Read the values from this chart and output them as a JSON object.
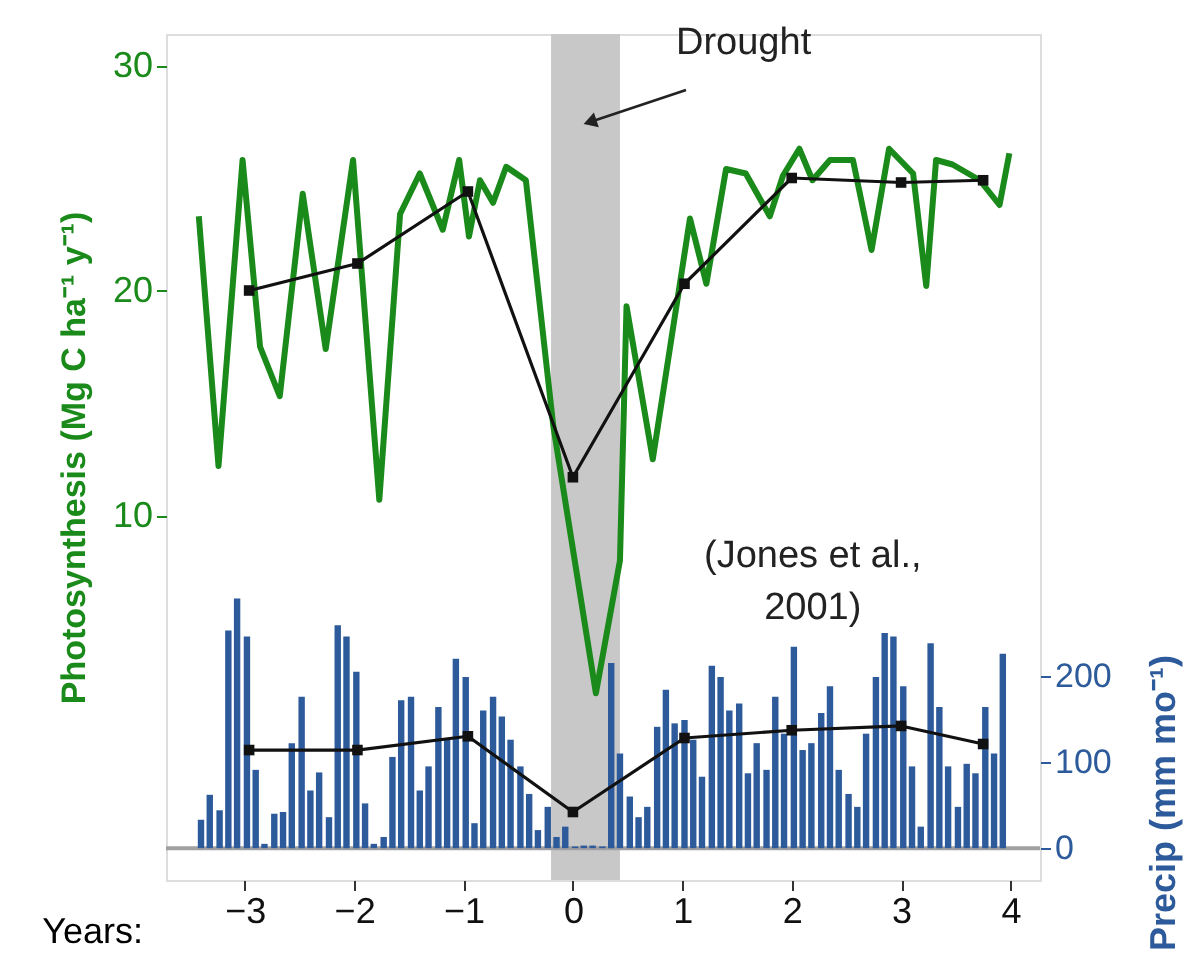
{
  "chart_data": {
    "type": "line",
    "xlabel": "Years:",
    "ylabel": "Photosynthesis (Mg C ha⁻¹ y⁻¹)",
    "y2label": "Precip (mm mo⁻¹)",
    "xlim": [
      -3.72,
      4.27
    ],
    "xticks": [
      -3,
      -2,
      -1,
      0,
      1,
      2,
      3,
      4
    ],
    "ylim": [
      -6.2,
      31.4
    ],
    "yticks": [
      10,
      20,
      30
    ],
    "y2lim": [
      -37,
      946
    ],
    "y2ticks": [
      0,
      100,
      200
    ],
    "grid": false,
    "bands": [
      {
        "axis": "x",
        "from": -0.2,
        "to": 0.43,
        "color": "#c8c8c8"
      }
    ],
    "ref_lines": [
      {
        "axis": "y2",
        "value": 0,
        "color": "#a0a0a0"
      }
    ],
    "annotations": [
      "Drought",
      "(Jones et al.,\n2001)"
    ],
    "series": [
      {
        "type": "bar",
        "axis": "y2",
        "color": "#2d5a9a",
        "x": [
          -3.4,
          -3.32,
          -3.23,
          -3.15,
          -3.07,
          -2.98,
          -2.9,
          -2.82,
          -2.73,
          -2.65,
          -2.57,
          -2.48,
          -2.4,
          -2.32,
          -2.23,
          -2.15,
          -2.07,
          -1.98,
          -1.9,
          -1.82,
          -1.73,
          -1.65,
          -1.57,
          -1.48,
          -1.4,
          -1.32,
          -1.23,
          -1.15,
          -1.07,
          -0.98,
          -0.9,
          -0.82,
          -0.73,
          -0.65,
          -0.57,
          -0.48,
          -0.4,
          -0.32,
          -0.23,
          -0.15,
          -0.07,
          0.02,
          0.1,
          0.18,
          0.27,
          0.35,
          0.43,
          0.52,
          0.6,
          0.68,
          0.77,
          0.85,
          0.93,
          1.02,
          1.1,
          1.18,
          1.27,
          1.35,
          1.43,
          1.52,
          1.6,
          1.68,
          1.77,
          1.85,
          1.93,
          2.02,
          2.1,
          2.18,
          2.27,
          2.35,
          2.43,
          2.52,
          2.6,
          2.68,
          2.77,
          2.85,
          2.93,
          3.02,
          3.1,
          3.18,
          3.27,
          3.35,
          3.43,
          3.52,
          3.6,
          3.68,
          3.77,
          3.85,
          3.93
        ],
        "values": [
          33,
          62,
          44,
          253,
          290,
          246,
          91,
          5,
          40,
          42,
          122,
          176,
          67,
          88,
          36,
          259,
          246,
          205,
          52,
          5,
          13,
          106,
          172,
          176,
          67,
          95,
          164,
          126,
          220,
          199,
          29,
          160,
          176,
          153,
          126,
          95,
          63,
          21,
          48,
          13,
          25,
          2,
          3,
          3,
          2,
          215,
          110,
          60,
          36,
          48,
          141,
          184,
          145,
          149,
          126,
          83,
          212,
          199,
          160,
          168,
          87,
          122,
          91,
          176,
          133,
          234,
          114,
          122,
          157,
          188,
          91,
          63,
          48,
          133,
          199,
          250,
          246,
          188,
          95,
          25,
          238,
          164,
          95,
          48,
          98,
          87,
          164,
          110,
          226
        ]
      },
      {
        "axis": "y",
        "color": "#1a8a1a",
        "marker": "none",
        "x": [
          -3.42,
          -3.24,
          -3.02,
          -2.86,
          -2.68,
          -2.47,
          -2.26,
          -2.01,
          -1.77,
          -1.58,
          -1.4,
          -1.19,
          -1.04,
          -0.95,
          -0.85,
          -0.73,
          -0.61,
          -0.43,
          -0.18,
          0.0,
          0.21,
          0.43,
          0.49,
          0.73,
          1.07,
          1.22,
          1.4,
          1.58,
          1.8,
          1.92,
          2.07,
          2.19,
          2.35,
          2.56,
          2.73,
          2.89,
          3.11,
          3.23,
          3.32,
          3.47,
          3.72,
          3.9,
          3.99
        ],
        "values": [
          23.3,
          12.2,
          25.8,
          17.5,
          15.3,
          24.3,
          17.4,
          25.8,
          10.7,
          23.4,
          25.2,
          22.7,
          25.8,
          22.4,
          24.9,
          23.9,
          25.5,
          24.9,
          14.0,
          8.5,
          2.1,
          8.0,
          19.3,
          12.5,
          23.2,
          20.3,
          25.4,
          25.2,
          23.3,
          25.1,
          26.3,
          24.9,
          25.8,
          25.8,
          21.8,
          26.3,
          25.2,
          20.2,
          25.8,
          25.6,
          24.9,
          23.8,
          26.1
        ]
      },
      {
        "axis": "y",
        "color": "#111111",
        "marker": "square",
        "x": [
          -2.96,
          -1.97,
          -0.96,
          0.0,
          1.02,
          2.0,
          3.0,
          3.75
        ],
        "values": [
          20.0,
          21.2,
          24.4,
          11.7,
          20.3,
          25.0,
          24.8,
          24.9
        ]
      },
      {
        "axis": "y2",
        "color": "#111111",
        "marker": "square",
        "x": [
          -2.96,
          -1.97,
          -0.96,
          0.0,
          1.02,
          2.0,
          3.0,
          3.75
        ],
        "values": [
          114,
          114,
          130,
          42,
          128,
          137,
          142,
          121
        ]
      }
    ]
  }
}
